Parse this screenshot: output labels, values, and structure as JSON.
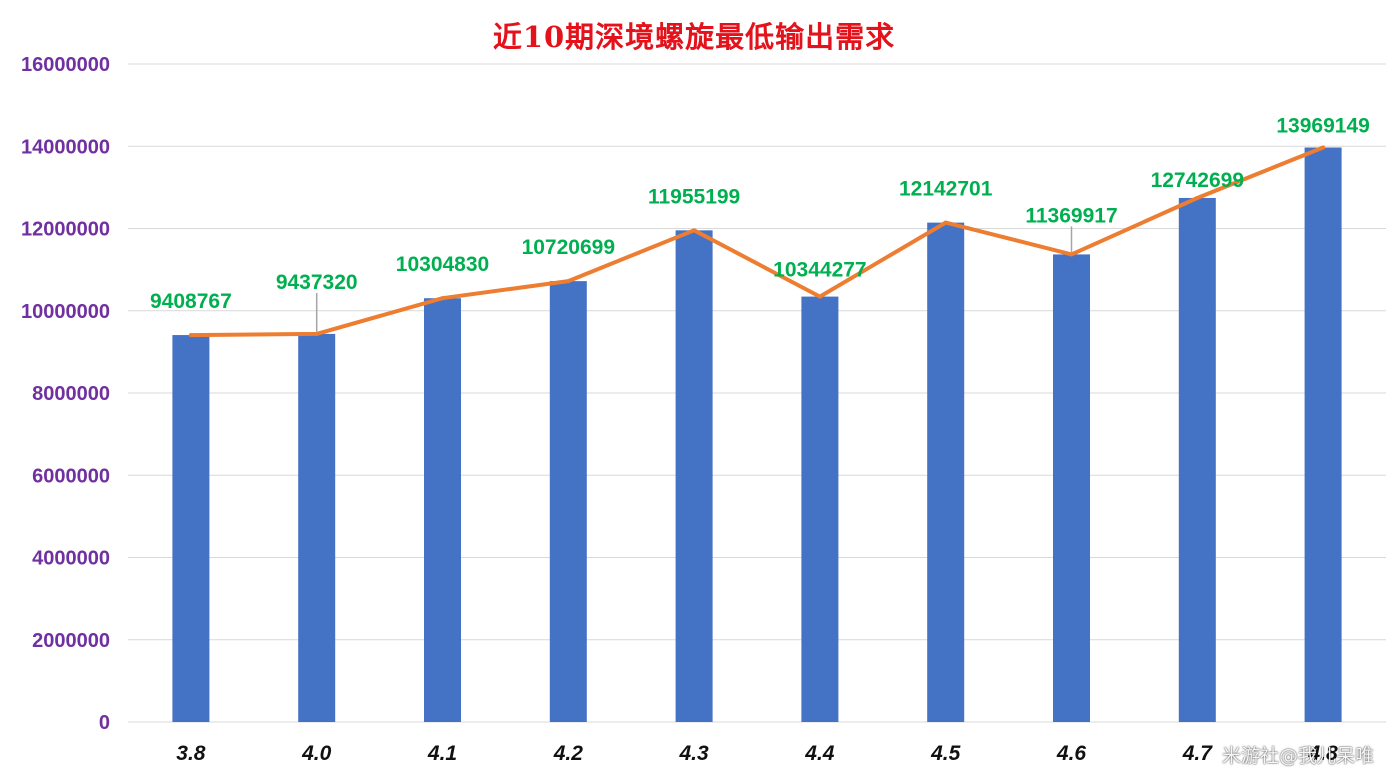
{
  "chart_data": {
    "type": "bar",
    "title": "近10期深境螺旋最低输出需求",
    "categories": [
      "3.8",
      "4.0",
      "4.1",
      "4.2",
      "4.3",
      "4.4",
      "4.5",
      "4.6",
      "4.7",
      "4.8"
    ],
    "values": [
      9408767,
      9437320,
      10304830,
      10720699,
      11955199,
      10344277,
      12142701,
      11369917,
      12742699,
      13969149
    ],
    "overlay_line": {
      "values": [
        9408767,
        9437320,
        10304830,
        10720699,
        11955199,
        10344277,
        12142701,
        11369917,
        12742699,
        13969149
      ]
    },
    "ylim": [
      0,
      16000000
    ],
    "yticks": [
      0,
      2000000,
      4000000,
      6000000,
      8000000,
      10000000,
      12000000,
      14000000,
      16000000
    ],
    "ytick_labels": [
      "0",
      "2000000",
      "4000000",
      "6000000",
      "8000000",
      "10000000",
      "12000000",
      "14000000",
      "16000000"
    ],
    "data_labels": [
      "9408767",
      "9437320",
      "10304830",
      "10720699",
      "11955199",
      "10344277",
      "12142701",
      "11369917",
      "12742699",
      "13969149"
    ],
    "grid": true,
    "legend": "none",
    "colors": {
      "bar": "#4472c4",
      "line": "#ed7d31",
      "data_label": "#00b050",
      "ytick": "#7030a0",
      "title": "#e3121b",
      "grid": "#d9d9d9"
    }
  },
  "watermark": "米游社@我儿呆唯"
}
